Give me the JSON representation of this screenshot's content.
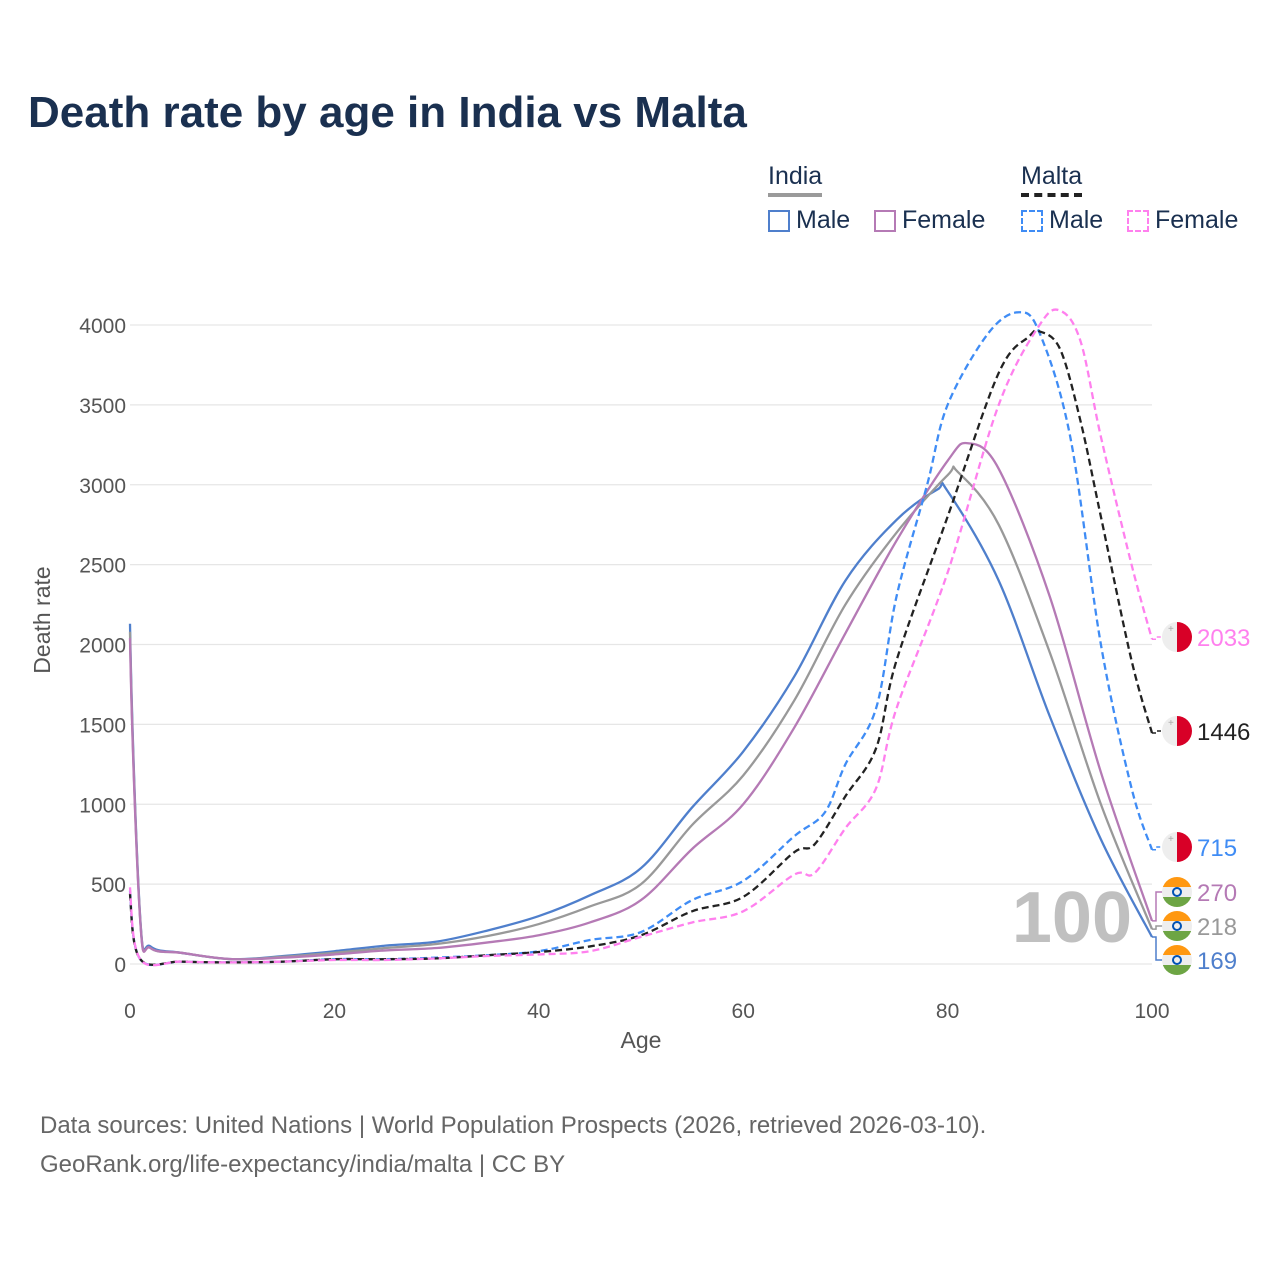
{
  "title": "Death rate by age in India vs Malta",
  "legend": {
    "groups": [
      {
        "label": "India",
        "style": "solid",
        "underline_color": "#9a9a9a",
        "items": [
          {
            "label": "Male",
            "color": "#4f7fcc"
          },
          {
            "label": "Female",
            "color": "#b57ab5"
          }
        ]
      },
      {
        "label": "Malta",
        "style": "dashed",
        "underline_color": "#222222",
        "items": [
          {
            "label": "Male",
            "color": "#3f8cf5"
          },
          {
            "label": "Female",
            "color": "#ff80ee"
          }
        ]
      }
    ]
  },
  "chart_data": {
    "type": "line",
    "title": "Death rate by age in India vs Malta",
    "xlabel": "Age",
    "ylabel": "Death rate",
    "xlim": [
      0,
      100
    ],
    "ylim": [
      0,
      4000
    ],
    "xticks": [
      0,
      20,
      40,
      60,
      80,
      100
    ],
    "yticks": [
      0,
      500,
      1000,
      1500,
      2000,
      2500,
      3000,
      3500,
      4000
    ],
    "grid": true,
    "year_marker": "100",
    "series": [
      {
        "name": "India Male",
        "country": "India",
        "sex": "Male",
        "color": "#4f7fcc",
        "dashed": false,
        "end_label": "169",
        "x": [
          0,
          1,
          2,
          5,
          10,
          15,
          20,
          25,
          30,
          35,
          40,
          45,
          50,
          55,
          60,
          65,
          70,
          75,
          79,
          80,
          85,
          90,
          95,
          100
        ],
        "y": [
          2130,
          290,
          110,
          70,
          30,
          50,
          80,
          115,
          140,
          210,
          300,
          430,
          600,
          980,
          1330,
          1800,
          2400,
          2780,
          2970,
          2960,
          2400,
          1550,
          780,
          169
        ]
      },
      {
        "name": "India Both",
        "country": "India",
        "sex": "Both",
        "color": "#999999",
        "dashed": false,
        "end_label": "218",
        "x": [
          0,
          1,
          2,
          5,
          10,
          15,
          20,
          25,
          30,
          35,
          40,
          45,
          50,
          55,
          60,
          65,
          70,
          75,
          80,
          81,
          85,
          90,
          95,
          100
        ],
        "y": [
          2080,
          280,
          100,
          70,
          30,
          45,
          70,
          100,
          125,
          175,
          250,
          360,
          500,
          870,
          1180,
          1650,
          2250,
          2700,
          3060,
          3080,
          2750,
          1950,
          1000,
          218
        ]
      },
      {
        "name": "India Female",
        "country": "India",
        "sex": "Female",
        "color": "#b57ab5",
        "dashed": false,
        "end_label": "270",
        "x": [
          0,
          1,
          2,
          5,
          10,
          15,
          20,
          25,
          30,
          35,
          40,
          45,
          50,
          55,
          60,
          65,
          70,
          75,
          80,
          82,
          85,
          90,
          95,
          100
        ],
        "y": [
          2040,
          270,
          100,
          70,
          30,
          40,
          60,
          85,
          100,
          135,
          180,
          260,
          400,
          720,
          1000,
          1480,
          2070,
          2650,
          3150,
          3260,
          3100,
          2300,
          1200,
          270
        ]
      },
      {
        "name": "Malta Male",
        "country": "Malta",
        "sex": "Male",
        "color": "#3f8cf5",
        "dashed": true,
        "end_label": "715",
        "x": [
          0,
          1,
          5,
          10,
          15,
          20,
          25,
          30,
          35,
          40,
          45,
          50,
          55,
          60,
          65,
          68,
          70,
          73,
          75,
          78,
          80,
          84,
          87,
          89,
          92,
          95,
          98,
          100
        ],
        "y": [
          460,
          30,
          15,
          10,
          15,
          30,
          30,
          40,
          55,
          80,
          150,
          200,
          400,
          520,
          800,
          950,
          1250,
          1600,
          2300,
          3000,
          3500,
          3950,
          4080,
          3950,
          3300,
          2000,
          1100,
          715
        ]
      },
      {
        "name": "Malta Both",
        "country": "Malta",
        "sex": "Both",
        "color": "#222222",
        "dashed": true,
        "end_label": "1446",
        "x": [
          0,
          1,
          5,
          10,
          15,
          20,
          25,
          30,
          35,
          40,
          45,
          50,
          55,
          60,
          65,
          67,
          70,
          73,
          75,
          80,
          85,
          88,
          89,
          91,
          93,
          95,
          98,
          100
        ],
        "y": [
          440,
          30,
          15,
          10,
          15,
          30,
          30,
          35,
          55,
          75,
          110,
          180,
          330,
          420,
          700,
          750,
          1050,
          1350,
          1900,
          2800,
          3700,
          3930,
          3960,
          3850,
          3400,
          2800,
          1900,
          1446
        ]
      },
      {
        "name": "Malta Female",
        "country": "Malta",
        "sex": "Female",
        "color": "#ff80ee",
        "dashed": true,
        "end_label": "2033",
        "x": [
          0,
          1,
          5,
          10,
          15,
          20,
          25,
          30,
          35,
          40,
          45,
          50,
          55,
          60,
          65,
          67,
          70,
          73,
          75,
          80,
          85,
          89,
          91,
          93,
          95,
          98,
          100
        ],
        "y": [
          480,
          30,
          15,
          10,
          15,
          25,
          25,
          35,
          50,
          60,
          80,
          170,
          260,
          330,
          560,
          570,
          850,
          1100,
          1600,
          2450,
          3500,
          4000,
          4090,
          3900,
          3300,
          2500,
          2033
        ]
      }
    ]
  },
  "footer": {
    "line1": "Data sources: United Nations | World Population Prospects (2026, retrieved 2026-03-10).",
    "line2": "GeoRank.org/life-expectancy/india/malta | CC BY"
  }
}
